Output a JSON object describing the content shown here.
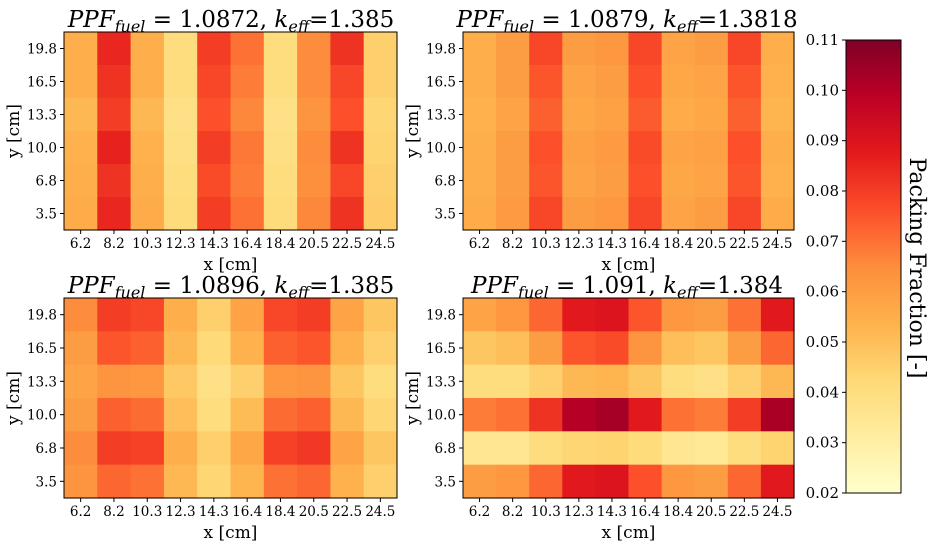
{
  "chart_data": [
    {
      "type": "heatmap",
      "title_ppf_symbol": "PPF",
      "title_ppf_sub": "fuel",
      "title_ppf_value": " = 1.0872, ",
      "title_k_symbol": "k",
      "title_k_sub": "eff",
      "title_k_value": "=1.385",
      "xlabel": "x [cm]",
      "ylabel": "y [cm]",
      "x": [
        "6.2",
        "8.2",
        "10.3",
        "12.3",
        "14.3",
        "16.4",
        "18.4",
        "20.5",
        "22.5",
        "24.5"
      ],
      "y": [
        "19.8",
        "16.5",
        "13.3",
        "10.0",
        "6.8",
        "3.5"
      ],
      "values": [
        [
          0.055,
          0.085,
          0.055,
          0.04,
          0.08,
          0.07,
          0.04,
          0.065,
          0.082,
          0.045
        ],
        [
          0.055,
          0.082,
          0.055,
          0.04,
          0.078,
          0.068,
          0.04,
          0.065,
          0.078,
          0.045
        ],
        [
          0.052,
          0.08,
          0.052,
          0.038,
          0.076,
          0.066,
          0.038,
          0.063,
          0.076,
          0.043
        ],
        [
          0.054,
          0.086,
          0.054,
          0.039,
          0.08,
          0.069,
          0.039,
          0.065,
          0.082,
          0.044
        ],
        [
          0.055,
          0.082,
          0.055,
          0.04,
          0.077,
          0.068,
          0.04,
          0.064,
          0.078,
          0.045
        ],
        [
          0.056,
          0.085,
          0.056,
          0.041,
          0.08,
          0.07,
          0.041,
          0.066,
          0.082,
          0.046
        ]
      ]
    },
    {
      "type": "heatmap",
      "title_ppf_symbol": "PPF",
      "title_ppf_sub": "fuel",
      "title_ppf_value": " = 1.0879, ",
      "title_k_symbol": "k",
      "title_k_sub": "eff",
      "title_k_value": "=1.3818",
      "xlabel": "x [cm]",
      "ylabel": "y [cm]",
      "x": [
        "6.2",
        "8.2",
        "10.3",
        "12.3",
        "14.3",
        "16.4",
        "18.4",
        "20.5",
        "22.5",
        "24.5"
      ],
      "y": [
        "19.8",
        "16.5",
        "13.3",
        "10.0",
        "6.8",
        "3.5"
      ],
      "values": [
        [
          0.055,
          0.06,
          0.078,
          0.06,
          0.062,
          0.078,
          0.058,
          0.06,
          0.078,
          0.055
        ],
        [
          0.055,
          0.06,
          0.075,
          0.058,
          0.06,
          0.076,
          0.057,
          0.058,
          0.075,
          0.054
        ],
        [
          0.054,
          0.058,
          0.073,
          0.057,
          0.059,
          0.074,
          0.056,
          0.057,
          0.073,
          0.053
        ],
        [
          0.055,
          0.06,
          0.076,
          0.059,
          0.061,
          0.077,
          0.058,
          0.059,
          0.076,
          0.055
        ],
        [
          0.055,
          0.06,
          0.075,
          0.058,
          0.06,
          0.076,
          0.057,
          0.058,
          0.075,
          0.054
        ],
        [
          0.056,
          0.061,
          0.078,
          0.06,
          0.062,
          0.078,
          0.058,
          0.06,
          0.078,
          0.056
        ]
      ]
    },
    {
      "type": "heatmap",
      "title_ppf_symbol": "PPF",
      "title_ppf_sub": "fuel",
      "title_ppf_value": " = 1.0896, ",
      "title_k_symbol": "k",
      "title_k_sub": "eff",
      "title_k_value": "=1.385",
      "xlabel": "x [cm]",
      "ylabel": "y [cm]",
      "x": [
        "6.2",
        "8.2",
        "10.3",
        "12.3",
        "14.3",
        "16.4",
        "18.4",
        "20.5",
        "22.5",
        "24.5"
      ],
      "y": [
        "19.8",
        "16.5",
        "13.3",
        "10.0",
        "6.8",
        "3.5"
      ],
      "values": [
        [
          0.065,
          0.08,
          0.078,
          0.055,
          0.045,
          0.058,
          0.078,
          0.08,
          0.058,
          0.048
        ],
        [
          0.06,
          0.075,
          0.073,
          0.052,
          0.042,
          0.054,
          0.073,
          0.075,
          0.054,
          0.045
        ],
        [
          0.058,
          0.063,
          0.062,
          0.047,
          0.038,
          0.045,
          0.062,
          0.063,
          0.048,
          0.04
        ],
        [
          0.06,
          0.073,
          0.071,
          0.05,
          0.04,
          0.051,
          0.071,
          0.073,
          0.052,
          0.043
        ],
        [
          0.065,
          0.08,
          0.079,
          0.055,
          0.045,
          0.057,
          0.079,
          0.081,
          0.058,
          0.048
        ],
        [
          0.063,
          0.072,
          0.07,
          0.052,
          0.043,
          0.053,
          0.07,
          0.072,
          0.054,
          0.045
        ]
      ]
    },
    {
      "type": "heatmap",
      "title_ppf_symbol": "PPF",
      "title_ppf_sub": "fuel",
      "title_ppf_value": " = 1.091, ",
      "title_k_symbol": "k",
      "title_k_sub": "eff",
      "title_k_value": "=1.384",
      "xlabel": "x [cm]",
      "ylabel": "y [cm]",
      "x": [
        "6.2",
        "8.2",
        "10.3",
        "12.3",
        "14.3",
        "16.4",
        "18.4",
        "20.5",
        "22.5",
        "24.5"
      ],
      "y": [
        "19.8",
        "16.5",
        "13.3",
        "10.0",
        "6.8",
        "3.5"
      ],
      "values": [
        [
          0.058,
          0.062,
          0.072,
          0.088,
          0.09,
          0.075,
          0.062,
          0.06,
          0.07,
          0.088
        ],
        [
          0.048,
          0.05,
          0.06,
          0.075,
          0.077,
          0.063,
          0.05,
          0.048,
          0.06,
          0.072
        ],
        [
          0.04,
          0.04,
          0.045,
          0.052,
          0.053,
          0.048,
          0.04,
          0.038,
          0.045,
          0.052
        ],
        [
          0.068,
          0.07,
          0.082,
          0.1,
          0.103,
          0.088,
          0.07,
          0.068,
          0.08,
          0.102
        ],
        [
          0.035,
          0.035,
          0.04,
          0.043,
          0.044,
          0.041,
          0.035,
          0.034,
          0.04,
          0.044
        ],
        [
          0.06,
          0.062,
          0.072,
          0.088,
          0.09,
          0.076,
          0.062,
          0.06,
          0.072,
          0.088
        ]
      ]
    }
  ],
  "colorbar": {
    "label": "Packing Fraction [-]",
    "min": 0.02,
    "max": 0.11,
    "ticks": [
      "0.02",
      "0.03",
      "0.04",
      "0.05",
      "0.06",
      "0.07",
      "0.08",
      "0.09",
      "0.10",
      "0.11"
    ],
    "colormap": "YlOrRd"
  }
}
